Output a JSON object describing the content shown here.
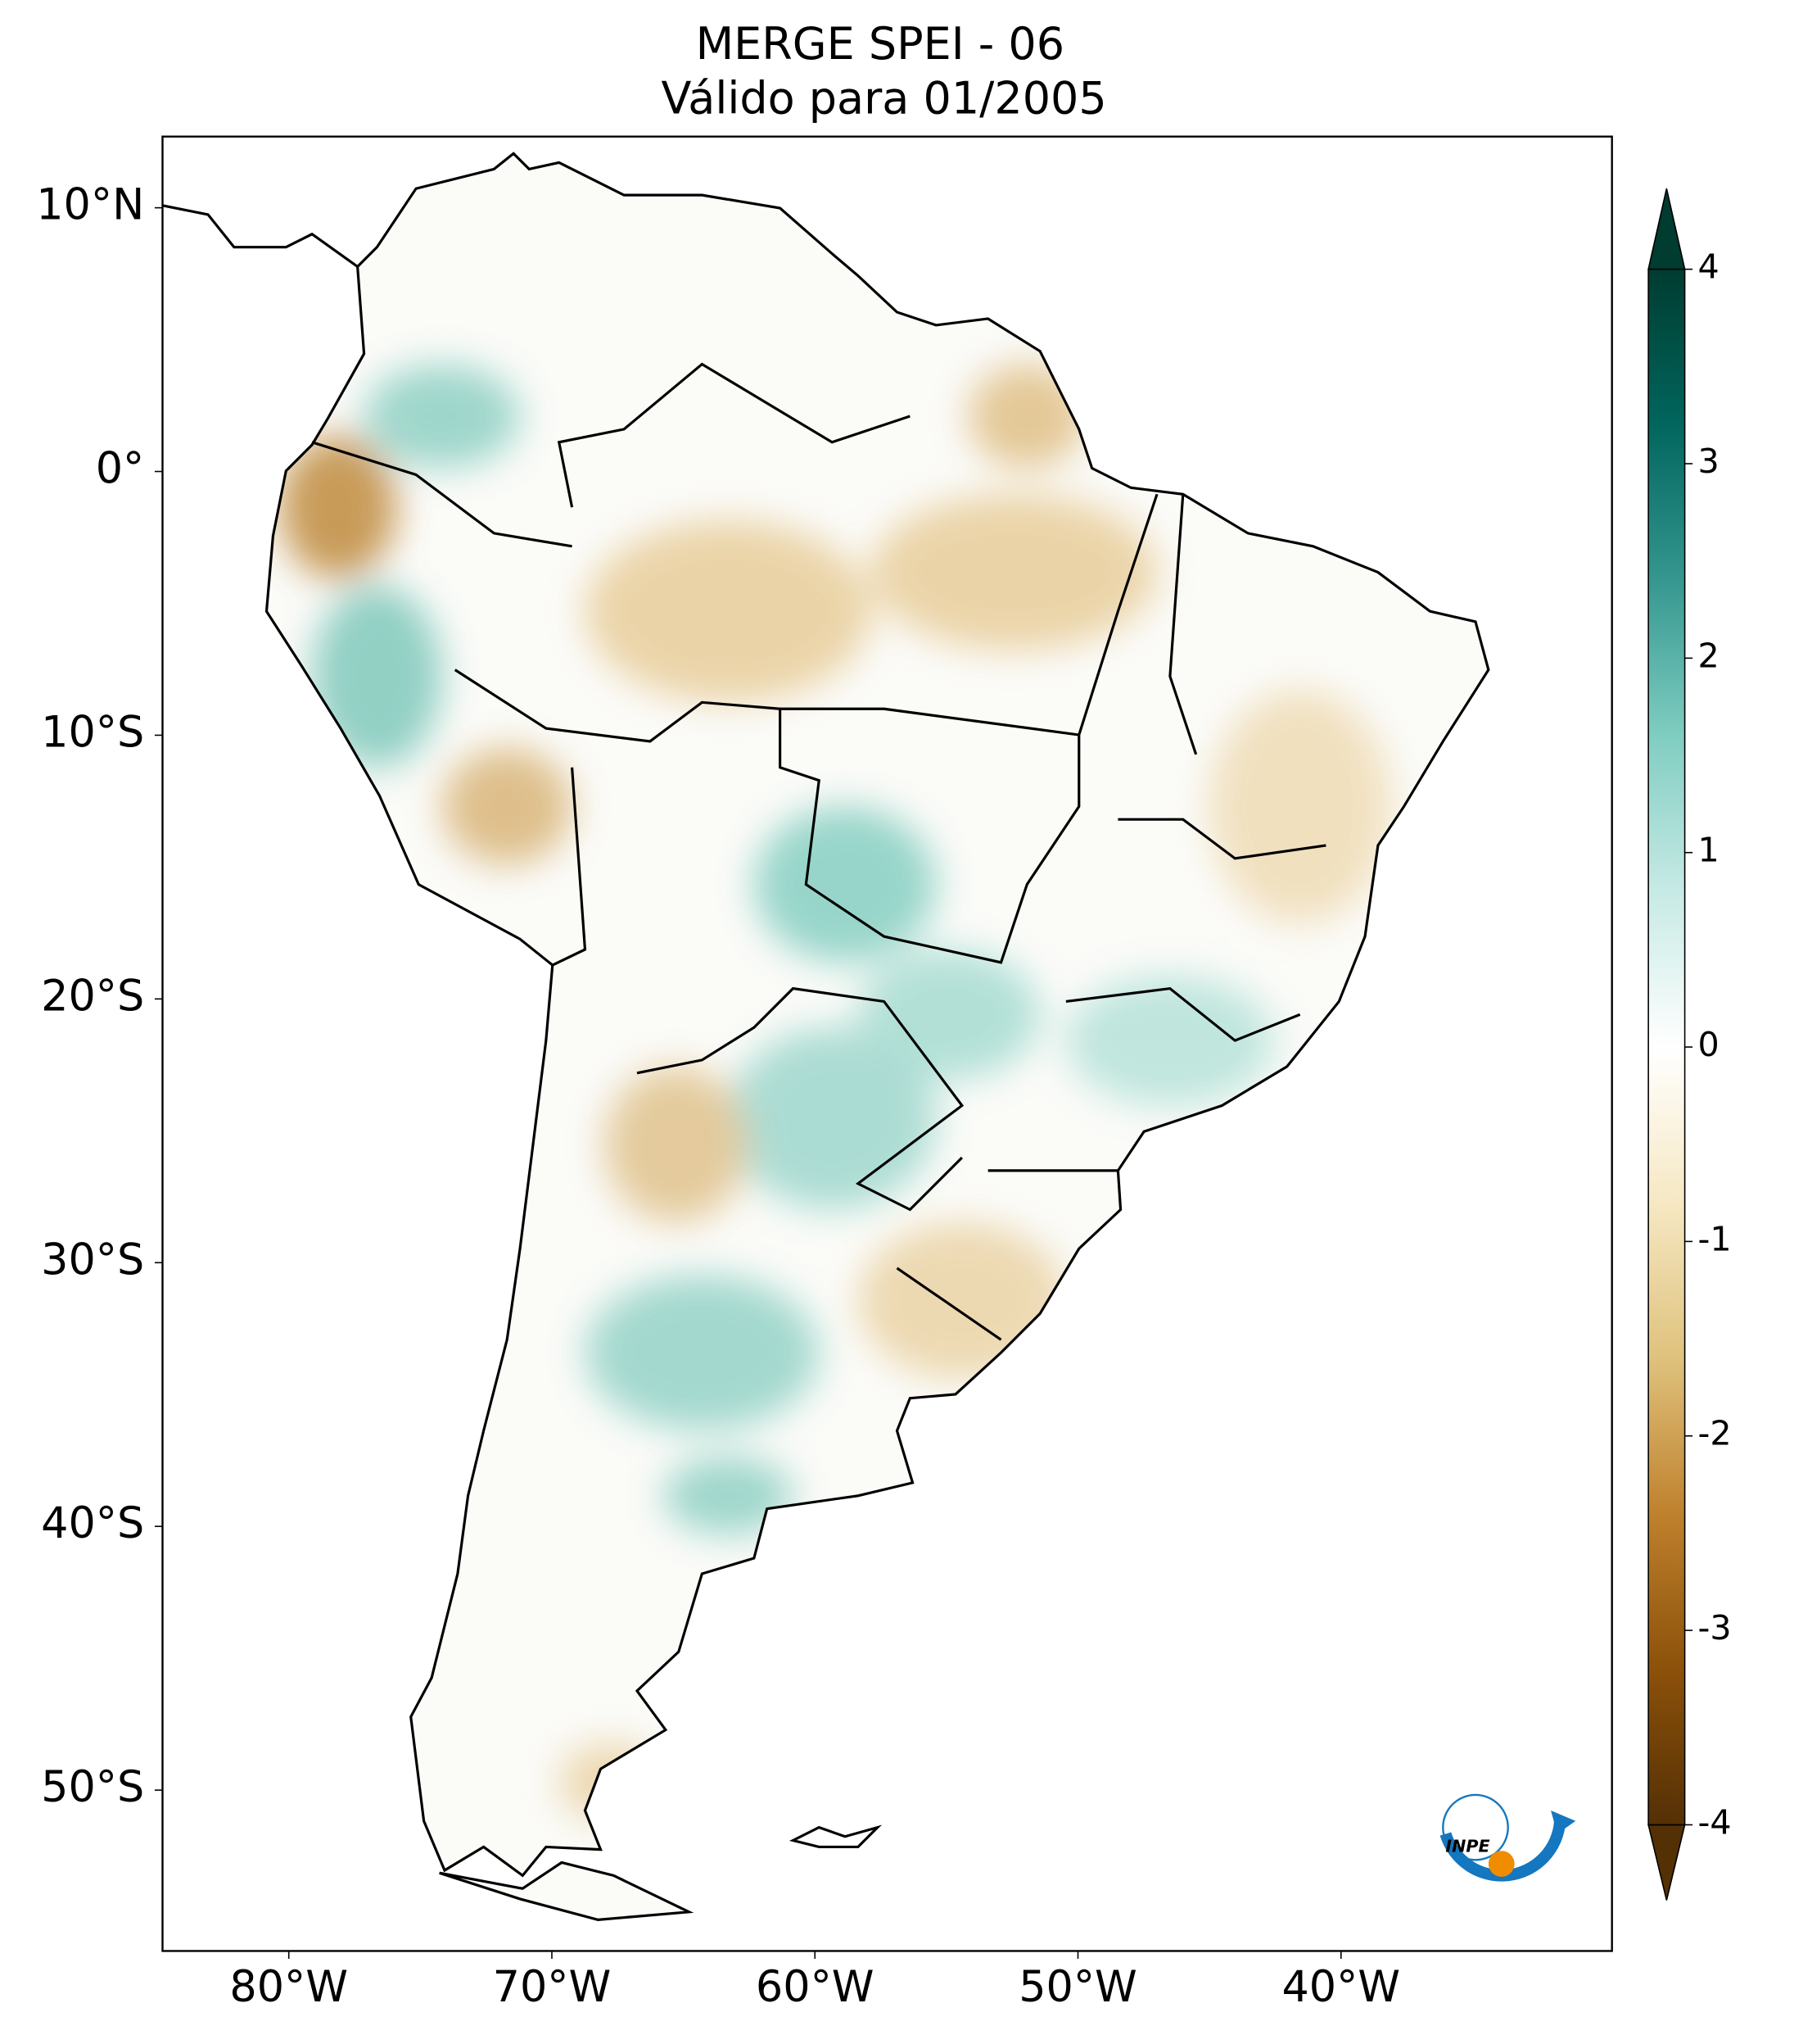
{
  "map": {
    "title": [
      "MERGE   SPEI - 06",
      "Válido para 01/2005"
    ],
    "extent": [
      -84.8,
      -29.7,
      -56.1,
      12.7
    ],
    "xticks": [
      {
        "value": -80,
        "label": "80°W"
      },
      {
        "value": -70,
        "label": "70°W"
      },
      {
        "value": -60,
        "label": "60°W"
      },
      {
        "value": -50,
        "label": "50°W"
      },
      {
        "value": -40,
        "label": "40°W"
      }
    ],
    "yticks": [
      {
        "value": 10,
        "label": "10°N"
      },
      {
        "value": 0,
        "label": "0°"
      },
      {
        "value": -10,
        "label": "10°S"
      },
      {
        "value": -20,
        "label": "20°S"
      },
      {
        "value": -30,
        "label": "30°S"
      },
      {
        "value": -40,
        "label": "40°S"
      },
      {
        "value": -50,
        "label": "50°S"
      }
    ],
    "colorbar": {
      "lim": [
        -4,
        4
      ],
      "ticks": [
        -4,
        -3,
        -2,
        -1,
        0,
        1,
        2,
        3,
        4
      ],
      "colors": [
        "#543005",
        "#8c510a",
        "#bf812d",
        "#dfc27d",
        "#f6e8c3",
        "#ffffff",
        "#c7eae5",
        "#80cdc1",
        "#35978f",
        "#01665e",
        "#003c30"
      ]
    }
  },
  "logo": "INPE"
}
